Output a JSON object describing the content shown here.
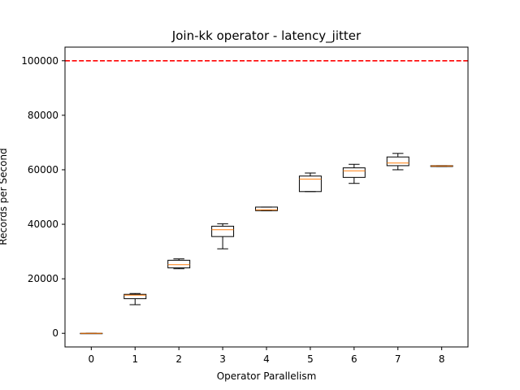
{
  "chart_data": {
    "type": "box",
    "title": "Join-kk operator - latency_jitter",
    "xlabel": "Operator Parallelism",
    "ylabel": "Records per Second",
    "x_ticks": [
      "0",
      "1",
      "2",
      "3",
      "4",
      "5",
      "6",
      "7",
      "8"
    ],
    "y_ticks": [
      0,
      20000,
      40000,
      60000,
      80000,
      100000
    ],
    "y_tick_labels": [
      "0",
      "20000",
      "40000",
      "60000",
      "80000",
      "100000"
    ],
    "ylim": [
      -5000,
      105000
    ],
    "grid": false,
    "reference_line": {
      "value": 100000,
      "color": "#ff0000",
      "style": "dashed"
    },
    "box_color": "#000000",
    "median_color": "#ff7f0e",
    "boxes": [
      {
        "x": "0",
        "whisker_low": 0,
        "q1": 0,
        "median": 0,
        "q3": 0,
        "whisker_high": 0
      },
      {
        "x": "1",
        "whisker_low": 10500,
        "q1": 12700,
        "median": 14000,
        "q3": 14300,
        "whisker_high": 14600
      },
      {
        "x": "2",
        "whisker_low": 23700,
        "q1": 24000,
        "median": 25200,
        "q3": 26800,
        "whisker_high": 27300
      },
      {
        "x": "3",
        "whisker_low": 31000,
        "q1": 35500,
        "median": 38000,
        "q3": 39300,
        "whisker_high": 40200
      },
      {
        "x": "4",
        "whisker_low": 45000,
        "q1": 45000,
        "median": 45300,
        "q3": 46300,
        "whisker_high": 46300
      },
      {
        "x": "5",
        "whisker_low": 52000,
        "q1": 52000,
        "median": 56600,
        "q3": 57700,
        "whisker_high": 58800
      },
      {
        "x": "6",
        "whisker_low": 55000,
        "q1": 57200,
        "median": 59600,
        "q3": 60700,
        "whisker_high": 62000
      },
      {
        "x": "7",
        "whisker_low": 60000,
        "q1": 61500,
        "median": 62500,
        "q3": 64700,
        "whisker_high": 66000
      },
      {
        "x": "8",
        "whisker_low": 61200,
        "q1": 61200,
        "median": 61400,
        "q3": 61500,
        "whisker_high": 61500
      }
    ]
  }
}
